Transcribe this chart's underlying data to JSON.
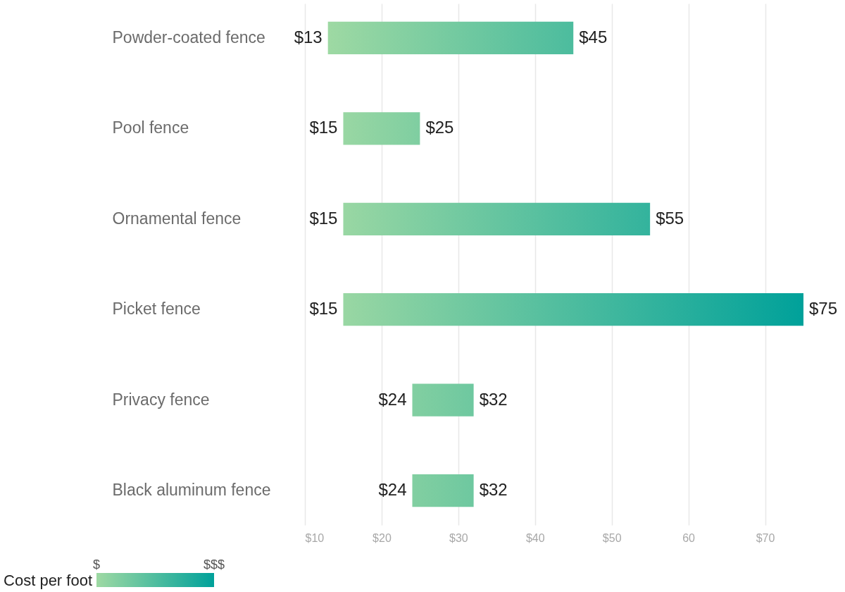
{
  "chart_data": {
    "type": "bar",
    "orientation": "horizontal",
    "categories": [
      "Powder-coated fence",
      "Pool fence",
      "Ornamental fence",
      "Picket fence",
      "Privacy fence",
      "Black aluminum fence"
    ],
    "base": [
      13,
      15,
      15,
      15,
      24,
      24
    ],
    "values": [
      32,
      10,
      40,
      60,
      8,
      8
    ],
    "xlim": [
      10,
      75
    ],
    "xticks": [
      {
        "value": 10,
        "label": "$10"
      },
      {
        "value": 20,
        "label": "$20"
      },
      {
        "value": 30,
        "label": "$30"
      },
      {
        "value": 40,
        "label": "$40"
      },
      {
        "value": 50,
        "label": "$50"
      },
      60,
      {
        "value": 70,
        "label": "$70"
      }
    ],
    "grid": "x",
    "clabel": "Cost per foot",
    "clim": [
      13,
      75
    ],
    "cticks": [
      {
        "value": 13,
        "label": "$"
      },
      {
        "value": 75,
        "label": "$$$"
      }
    ],
    "annotations": [
      {
        "text": "$13",
        "x": 13,
        "y": "Powder-coated fence"
      },
      {
        "text": "$45",
        "x": 45,
        "y": "Powder-coated fence"
      },
      {
        "text": "$15",
        "x": 15,
        "y": "Pool fence"
      },
      {
        "text": "$25",
        "x": 25,
        "y": "Pool fence"
      },
      {
        "text": "$15",
        "x": 15,
        "y": "Ornamental fence"
      },
      {
        "text": "$55",
        "x": 55,
        "y": "Ornamental fence"
      },
      {
        "text": "$15",
        "x": 15,
        "y": "Picket fence"
      },
      {
        "text": "$75",
        "x": 75,
        "y": "Picket fence"
      },
      {
        "text": "$24",
        "x": 24,
        "y": "Privacy fence"
      },
      {
        "text": "$32",
        "x": 32,
        "y": "Privacy fence"
      },
      {
        "text": "$24",
        "x": 24,
        "y": "Black aluminum fence"
      },
      {
        "text": "$32",
        "x": 32,
        "y": "Black aluminum fence"
      }
    ]
  }
}
